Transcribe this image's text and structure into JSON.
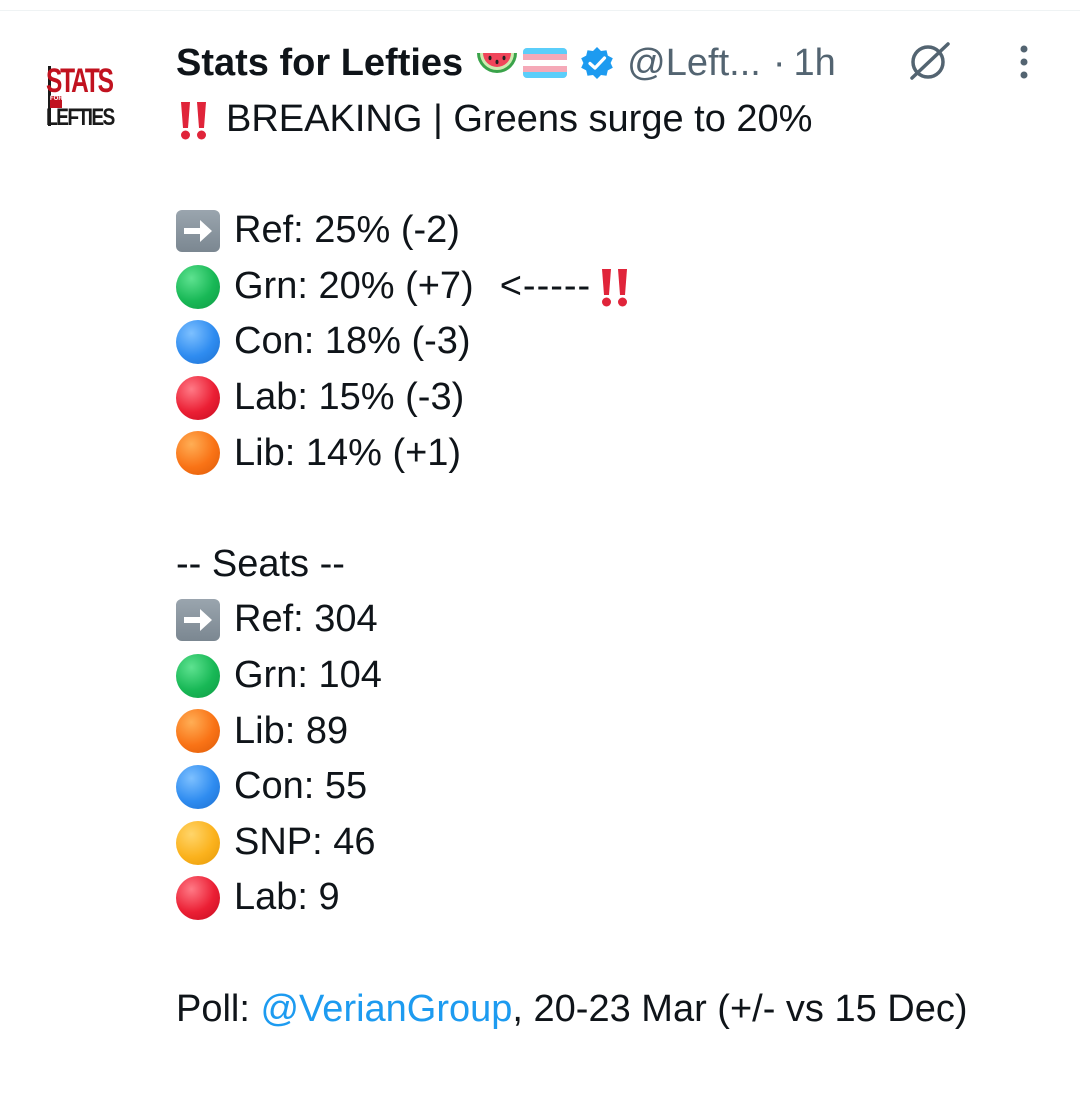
{
  "author": {
    "display_name": "Stats for Lefties",
    "handle": "@Left...",
    "time": "1h",
    "avatar_logo_top": "STATS",
    "avatar_logo_for": "FOR",
    "avatar_logo_bottom": "LEFTIES"
  },
  "tweet": {
    "headline": "BREAKING | Greens surge to 20%",
    "polls": [
      {
        "text": "Ref: 25% (-2)",
        "icon": "right-arrow-icon"
      },
      {
        "text": "Grn: 20% (+7)",
        "icon": "green-circle-icon",
        "annotation": "<-----"
      },
      {
        "text": "Con: 18% (-3)",
        "icon": "blue-circle-icon"
      },
      {
        "text": "Lab: 15% (-3)",
        "icon": "red-circle-icon"
      },
      {
        "text": "Lib: 14% (+1)",
        "icon": "orange-circle-icon"
      }
    ],
    "seats_header": "-- Seats --",
    "seats": [
      {
        "text": "Ref: 304",
        "icon": "right-arrow-icon"
      },
      {
        "text": "Grn: 104",
        "icon": "green-circle-icon"
      },
      {
        "text": "Lib: 89",
        "icon": "orange-circle-icon"
      },
      {
        "text": "Con: 55",
        "icon": "blue-circle-icon"
      },
      {
        "text": "SNP: 46",
        "icon": "yellow-circle-icon"
      },
      {
        "text": "Lab: 9",
        "icon": "red-circle-icon"
      }
    ],
    "footer_prefix": "Poll: ",
    "footer_mention": "@VerianGroup",
    "footer_suffix": ", 20-23 Mar (+/- vs 15 Dec)"
  },
  "colors": {
    "text": "#0f1419",
    "secondary": "#536471",
    "link": "#1d9bf0",
    "verified": "#1d9bf0"
  }
}
